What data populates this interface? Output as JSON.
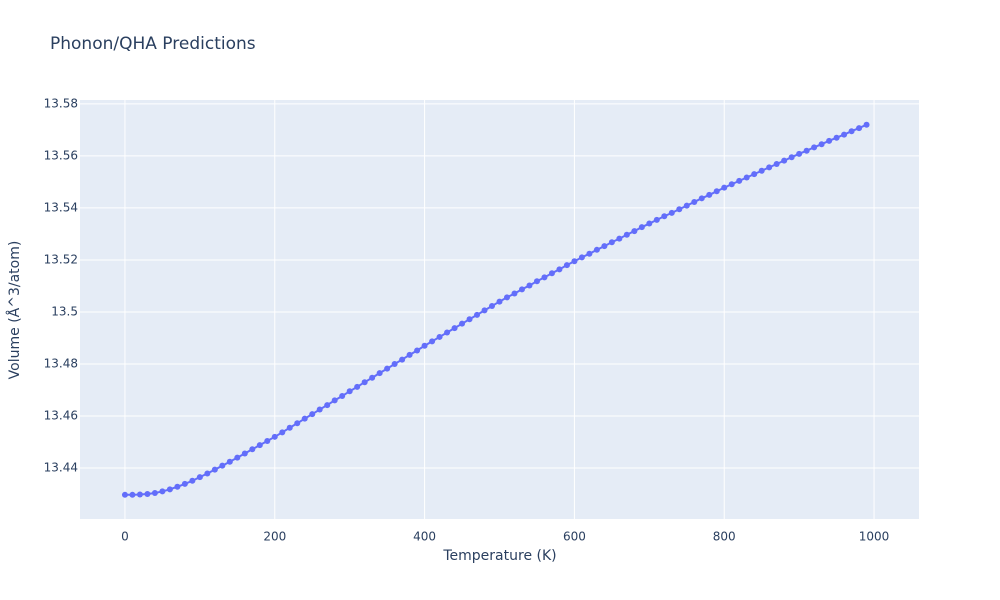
{
  "chart_data": {
    "type": "line",
    "title": "Phonon/QHA Predictions",
    "x_label": "Temperature (K)",
    "y_label": "Volume (Å^3/atom)",
    "x": [
      0,
      10,
      20,
      30,
      40,
      50,
      60,
      70,
      80,
      90,
      100,
      110,
      120,
      130,
      140,
      150,
      160,
      170,
      180,
      190,
      200,
      210,
      220,
      230,
      240,
      250,
      260,
      270,
      280,
      290,
      300,
      310,
      320,
      330,
      340,
      350,
      360,
      370,
      380,
      390,
      400,
      410,
      420,
      430,
      440,
      450,
      460,
      470,
      480,
      490,
      500,
      510,
      520,
      530,
      540,
      550,
      560,
      570,
      580,
      590,
      600,
      610,
      620,
      630,
      640,
      650,
      660,
      670,
      680,
      690,
      700,
      710,
      720,
      730,
      740,
      750,
      760,
      770,
      780,
      790,
      800,
      810,
      820,
      830,
      840,
      850,
      860,
      870,
      880,
      890,
      900,
      910,
      920,
      930,
      940,
      950,
      960,
      970,
      980,
      990
    ],
    "series": [
      {
        "color": "#636efa",
        "values": [
          13.4297,
          13.4297,
          13.4298,
          13.43,
          13.4304,
          13.431,
          13.4318,
          13.4328,
          13.4339,
          13.4351,
          13.4365,
          13.4379,
          13.4394,
          13.4409,
          13.4424,
          13.444,
          13.4456,
          13.4472,
          13.4488,
          13.4504,
          13.452,
          13.4537,
          13.4555,
          13.4572,
          13.459,
          13.4607,
          13.4625,
          13.4642,
          13.466,
          13.4677,
          13.4695,
          13.4712,
          13.473,
          13.4747,
          13.4765,
          13.4782,
          13.48,
          13.4817,
          13.4835,
          13.4852,
          13.487,
          13.4887,
          13.4904,
          13.4921,
          13.4938,
          13.4955,
          13.4972,
          13.4989,
          13.5006,
          13.5023,
          13.504,
          13.5056,
          13.5071,
          13.5087,
          13.5102,
          13.5118,
          13.5133,
          13.5149,
          13.5164,
          13.518,
          13.5195,
          13.521,
          13.5224,
          13.5239,
          13.5253,
          13.5268,
          13.5282,
          13.5297,
          13.5311,
          13.5326,
          13.534,
          13.5354,
          13.5368,
          13.5381,
          13.5395,
          13.5409,
          13.5423,
          13.5437,
          13.545,
          13.5464,
          13.5478,
          13.5491,
          13.5504,
          13.5517,
          13.553,
          13.5543,
          13.5556,
          13.5569,
          13.5582,
          13.5595,
          13.5608,
          13.562,
          13.5633,
          13.5645,
          13.5658,
          13.567,
          13.5682,
          13.5695,
          13.5707,
          13.572
        ]
      }
    ],
    "xlim": [
      -60,
      1060
    ],
    "xticks": [
      0,
      200,
      400,
      600,
      800,
      1000
    ],
    "ylim": [
      13.4204,
      13.5815
    ],
    "yticks": [
      13.44,
      13.46,
      13.48,
      13.5,
      13.52,
      13.54,
      13.56,
      13.58
    ],
    "grid": true,
    "background": "#e5ecf6"
  }
}
